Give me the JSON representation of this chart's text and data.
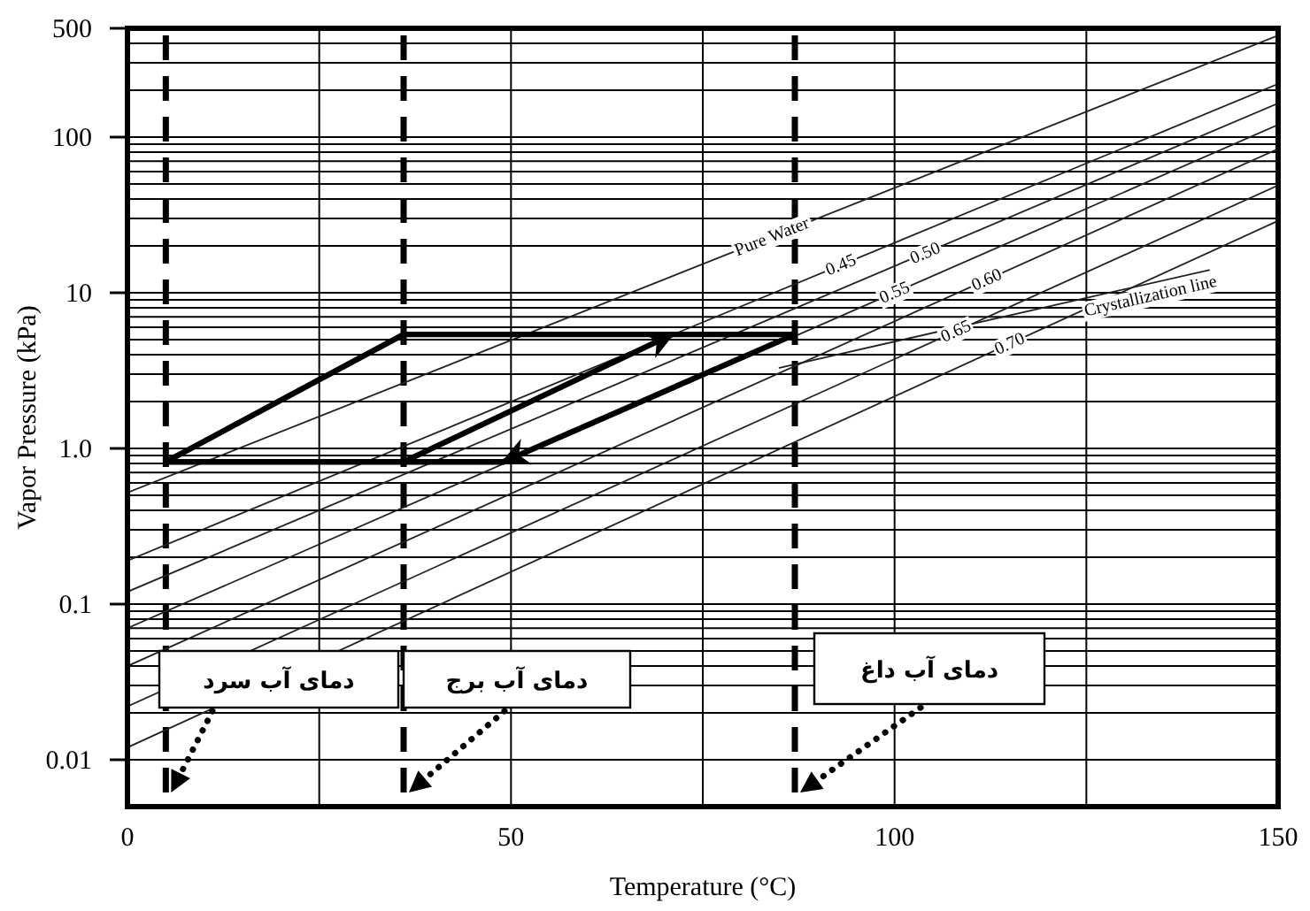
{
  "chart_data": {
    "type": "line",
    "xlabel": "Temperature (°C)",
    "ylabel": "Vapor Pressure (kPa)",
    "xlim": [
      0,
      150
    ],
    "xticks": [
      0,
      {
        "value": 25,
        "label": null
      },
      50,
      {
        "value": 75,
        "label": null
      },
      100,
      {
        "value": 125,
        "label": null
      },
      150
    ],
    "ylim": [
      0.005,
      500
    ],
    "log": "y",
    "yticks": [
      0.01,
      {
        "value": 0.02,
        "label": null
      },
      {
        "value": 0.03,
        "label": null
      },
      {
        "value": 0.04,
        "label": null
      },
      {
        "value": 0.05,
        "label": null
      },
      {
        "value": 0.06,
        "label": null
      },
      {
        "value": 0.07,
        "label": null
      },
      {
        "value": 0.08,
        "label": null
      },
      {
        "value": 0.09,
        "label": null
      },
      0.1,
      {
        "value": 0.2,
        "label": null
      },
      {
        "value": 0.3,
        "label": null
      },
      {
        "value": 0.4,
        "label": null
      },
      {
        "value": 0.5,
        "label": null
      },
      {
        "value": 0.6,
        "label": null
      },
      {
        "value": 0.7,
        "label": null
      },
      {
        "value": 0.8,
        "label": null
      },
      {
        "value": 0.9,
        "label": null
      },
      {
        "value": 1,
        "label": "1.0"
      },
      {
        "value": 2,
        "label": null
      },
      {
        "value": 3,
        "label": null
      },
      {
        "value": 4,
        "label": null
      },
      {
        "value": 5,
        "label": null
      },
      {
        "value": 6,
        "label": null
      },
      {
        "value": 7,
        "label": null
      },
      {
        "value": 8,
        "label": null
      },
      {
        "value": 9,
        "label": null
      },
      10,
      {
        "value": 20,
        "label": null
      },
      {
        "value": 30,
        "label": null
      },
      {
        "value": 40,
        "label": null
      },
      {
        "value": 50,
        "label": null
      },
      {
        "value": 60,
        "label": null
      },
      {
        "value": 70,
        "label": null
      },
      {
        "value": 80,
        "label": null
      },
      {
        "value": 90,
        "label": null
      },
      100,
      {
        "value": 200,
        "label": null
      },
      {
        "value": 300,
        "label": null
      },
      {
        "value": 400,
        "label": null
      },
      500
    ],
    "grid": true,
    "legend": false,
    "line_style": "solid",
    "series": [
      {
        "name": "Pure Water",
        "color": "#222222",
        "x": [
          0,
          150
        ],
        "values": [
          0.52,
          450
        ]
      },
      {
        "name": "0.45",
        "color": "#222222",
        "x": [
          0,
          150
        ],
        "values": [
          0.19,
          220
        ]
      },
      {
        "name": "0.50",
        "color": "#222222",
        "x": [
          0,
          150
        ],
        "values": [
          0.12,
          165
        ]
      },
      {
        "name": "0.55",
        "color": "#222222",
        "x": [
          0,
          150
        ],
        "values": [
          0.07,
          120
        ]
      },
      {
        "name": "0.60",
        "color": "#222222",
        "x": [
          0,
          150
        ],
        "values": [
          0.04,
          84
        ]
      },
      {
        "name": "0.65",
        "color": "#222222",
        "x": [
          0,
          150
        ],
        "values": [
          0.022,
          49
        ]
      },
      {
        "name": "0.70",
        "color": "#222222",
        "x": [
          0,
          150
        ],
        "values": [
          0.012,
          29
        ]
      },
      {
        "name": "Crystallization line",
        "color": "#222222",
        "x": [
          85,
          141
        ],
        "values": [
          3.3,
          14
        ]
      },
      {
        "color": "#000000",
        "x": [
          5,
          49
        ],
        "values": [
          0.82,
          0.82
        ]
      },
      {
        "color": "#000000",
        "x": [
          5,
          36
        ],
        "values": [
          0.82,
          5.4
        ]
      },
      {
        "color": "#000000",
        "x": [
          36,
          87
        ],
        "values": [
          5.4,
          5.4
        ]
      },
      {
        "color": "#000000",
        "x": [
          87,
          49
        ],
        "values": [
          5.4,
          0.82
        ]
      },
      {
        "color": "#000000",
        "x": [
          36,
          71
        ],
        "values": [
          0.82,
          5.4
        ]
      }
    ],
    "ref_lines": [
      {
        "axis": "x",
        "value": 5,
        "line_style": "dashed",
        "color": "#000000"
      },
      {
        "axis": "x",
        "value": 36,
        "line_style": "dashed",
        "color": "#000000"
      },
      {
        "axis": "x",
        "value": 87,
        "line_style": "dashed",
        "color": "#000000"
      }
    ],
    "annotations": [
      "دمای آب سرد",
      "دمای آب برج",
      "دمای آب داغ"
    ]
  }
}
